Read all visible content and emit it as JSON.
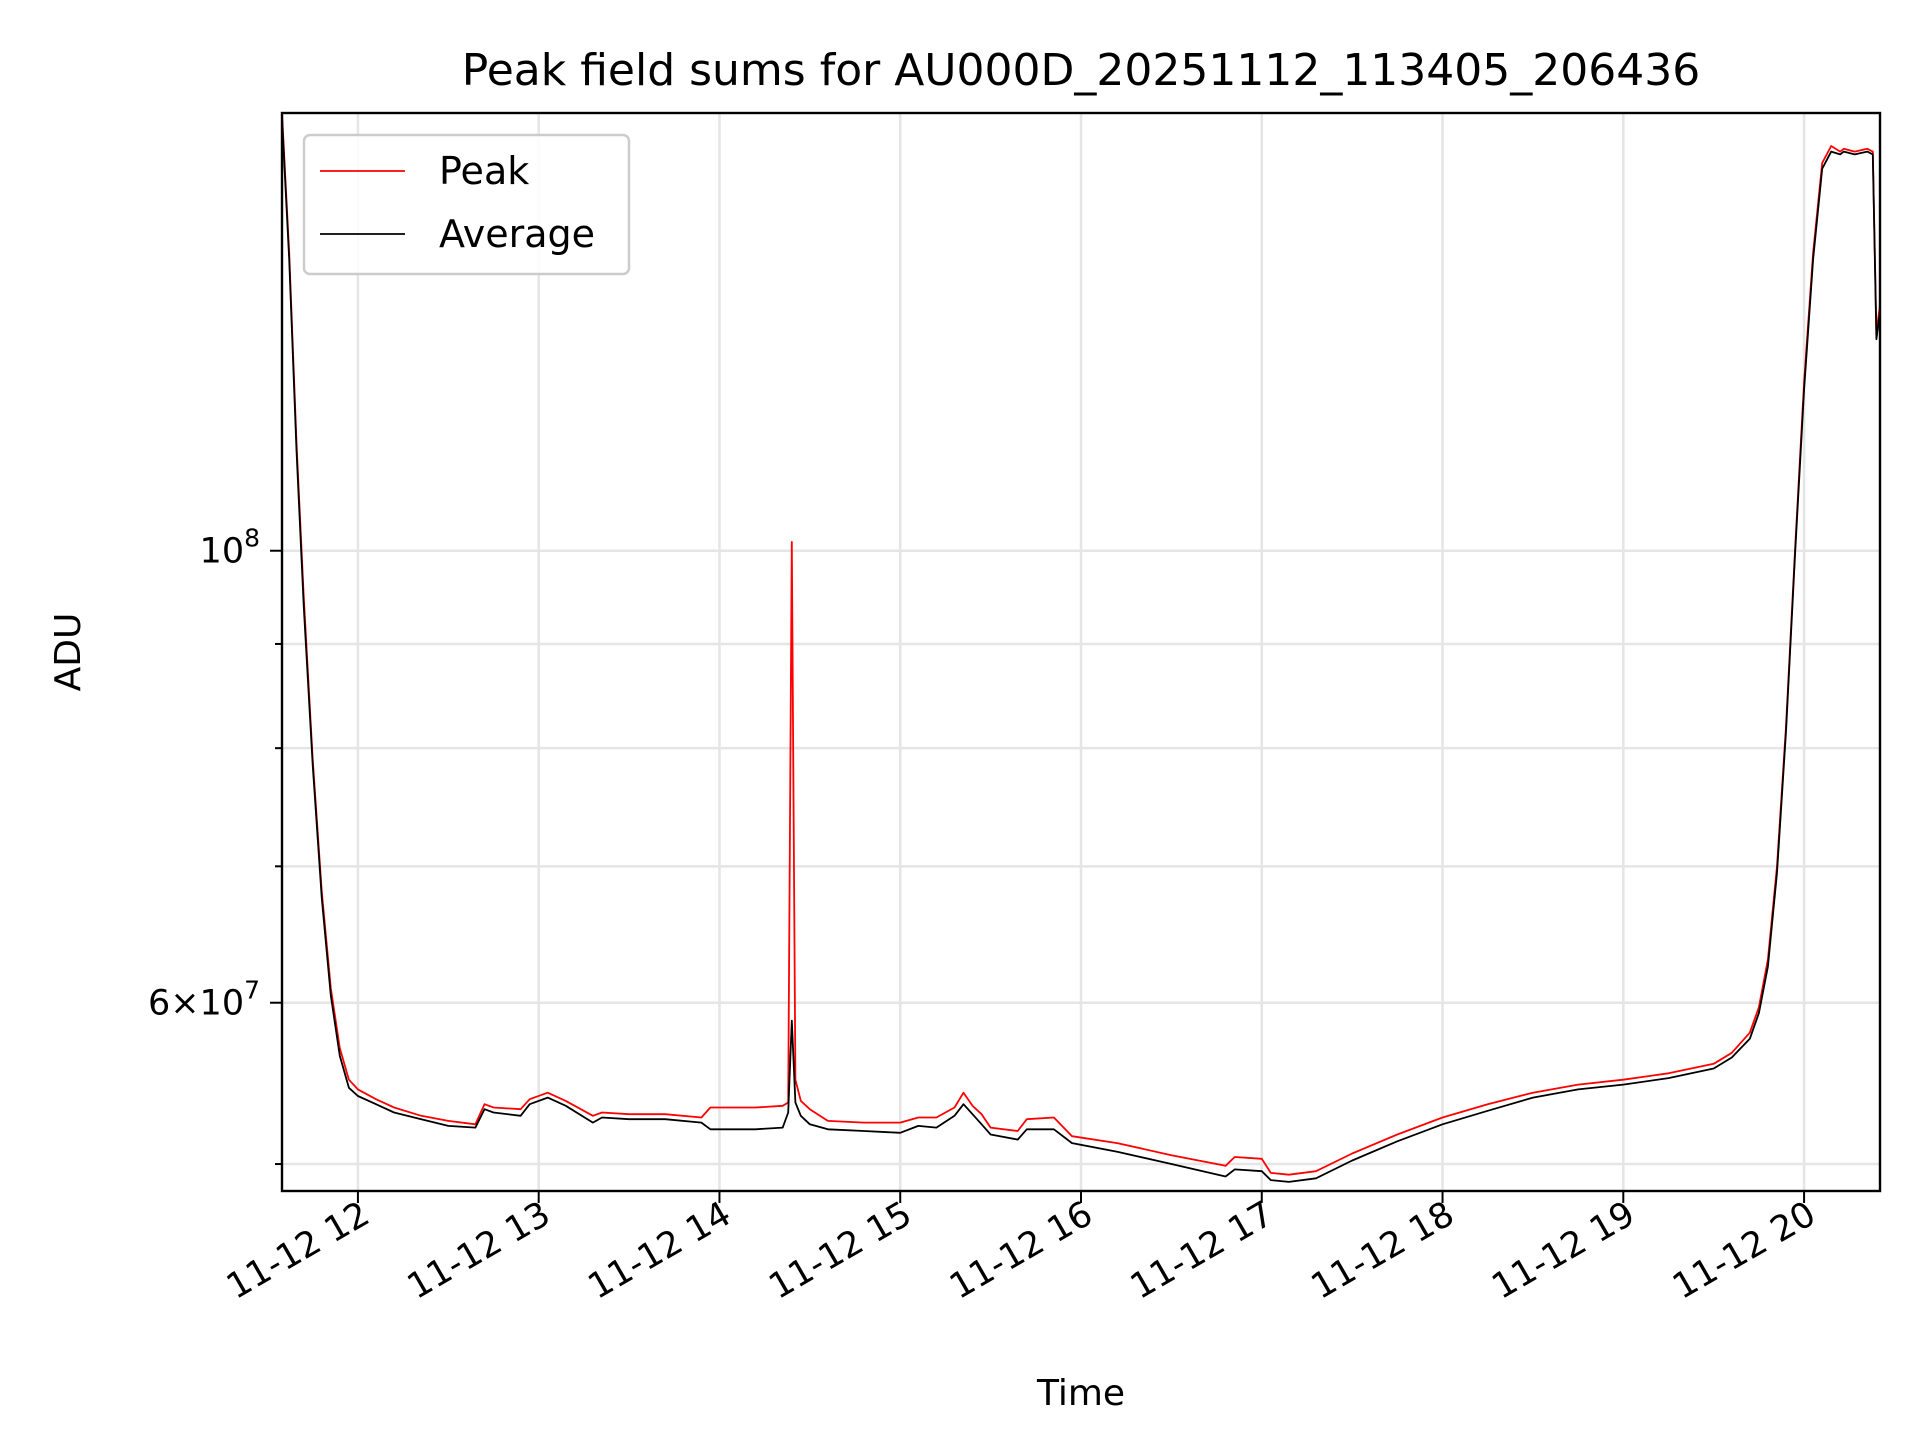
{
  "chart_data": {
    "type": "line",
    "title": "Peak field sums for AU000D_20251112_113405_206436",
    "xlabel": "Time",
    "ylabel": "ADU",
    "yscale": "log",
    "xlim": [
      11.58,
      20.42
    ],
    "ylim": [
      48500000,
      164000000
    ],
    "grid": true,
    "legend_position": "top-left",
    "x_tick_values": [
      12,
      13,
      14,
      15,
      16,
      17,
      18,
      19,
      20
    ],
    "x_tick_labels": [
      "11-12 12",
      "11-12 13",
      "11-12 14",
      "11-12 15",
      "11-12 16",
      "11-12 17",
      "11-12 18",
      "11-12 19",
      "11-12 20"
    ],
    "y_tick_labels": [
      {
        "value": 100000000,
        "base": "10",
        "exp": "8"
      },
      {
        "value": 60000000,
        "base": "6×10",
        "exp": "7"
      }
    ],
    "y_minor_ticks": [
      50000000,
      70000000,
      80000000,
      90000000
    ],
    "series": [
      {
        "name": "Peak",
        "color": "#ff0000",
        "x": [
          11.58,
          11.62,
          11.66,
          11.7,
          11.75,
          11.8,
          11.85,
          11.9,
          11.95,
          12.0,
          12.1,
          12.2,
          12.35,
          12.5,
          12.65,
          12.7,
          12.75,
          12.9,
          12.95,
          13.05,
          13.15,
          13.3,
          13.35,
          13.5,
          13.7,
          13.9,
          13.95,
          14.2,
          14.35,
          14.38,
          14.4,
          14.42,
          14.45,
          14.5,
          14.6,
          14.8,
          15.0,
          15.1,
          15.2,
          15.3,
          15.35,
          15.4,
          15.45,
          15.5,
          15.65,
          15.7,
          15.85,
          15.95,
          16.2,
          16.5,
          16.8,
          16.85,
          17.0,
          17.05,
          17.15,
          17.3,
          17.5,
          17.75,
          18.0,
          18.25,
          18.5,
          18.75,
          19.0,
          19.25,
          19.5,
          19.6,
          19.7,
          19.75,
          19.8,
          19.85,
          19.9,
          19.95,
          20.0,
          20.05,
          20.1,
          20.15,
          20.2,
          20.22,
          20.28,
          20.35,
          20.38,
          20.4,
          20.42
        ],
        "y": [
          164000000,
          140000000,
          113000000,
          95000000,
          79000000,
          68000000,
          61000000,
          57000000,
          55000000,
          54400000,
          53800000,
          53300000,
          52800000,
          52500000,
          52300000,
          53500000,
          53300000,
          53200000,
          53800000,
          54200000,
          53700000,
          52800000,
          53000000,
          52900000,
          52900000,
          52700000,
          53300000,
          53300000,
          53400000,
          53600000,
          101000000,
          55000000,
          53700000,
          53200000,
          52500000,
          52400000,
          52400000,
          52700000,
          52700000,
          53300000,
          54200000,
          53400000,
          52900000,
          52100000,
          51900000,
          52600000,
          52700000,
          51600000,
          51200000,
          50500000,
          49900000,
          50400000,
          50300000,
          49500000,
          49400000,
          49600000,
          50600000,
          51700000,
          52700000,
          53500000,
          54200000,
          54700000,
          55000000,
          55400000,
          56000000,
          56700000,
          58000000,
          59700000,
          63000000,
          70000000,
          82000000,
          100000000,
          121000000,
          140000000,
          155000000,
          158000000,
          157000000,
          157500000,
          157000000,
          157500000,
          157000000,
          128000000,
          132000000
        ]
      },
      {
        "name": "Average",
        "color": "#000000",
        "x": [
          11.58,
          11.62,
          11.66,
          11.7,
          11.75,
          11.8,
          11.85,
          11.9,
          11.95,
          12.0,
          12.1,
          12.2,
          12.35,
          12.5,
          12.65,
          12.7,
          12.75,
          12.9,
          12.95,
          13.05,
          13.15,
          13.3,
          13.35,
          13.5,
          13.7,
          13.9,
          13.95,
          14.2,
          14.35,
          14.38,
          14.4,
          14.42,
          14.45,
          14.5,
          14.6,
          14.8,
          15.0,
          15.1,
          15.2,
          15.3,
          15.35,
          15.4,
          15.45,
          15.5,
          15.65,
          15.7,
          15.85,
          15.95,
          16.2,
          16.5,
          16.8,
          16.85,
          17.0,
          17.05,
          17.15,
          17.3,
          17.5,
          17.75,
          18.0,
          18.25,
          18.5,
          18.75,
          19.0,
          19.25,
          19.5,
          19.6,
          19.7,
          19.75,
          19.8,
          19.85,
          19.9,
          19.95,
          20.0,
          20.05,
          20.1,
          20.15,
          20.2,
          20.22,
          20.28,
          20.35,
          20.38,
          20.4,
          20.42
        ],
        "y": [
          163000000,
          139000000,
          112000000,
          94000000,
          78500000,
          67500000,
          60500000,
          56500000,
          54500000,
          54000000,
          53500000,
          53000000,
          52600000,
          52200000,
          52100000,
          53200000,
          53000000,
          52800000,
          53500000,
          53900000,
          53400000,
          52400000,
          52700000,
          52600000,
          52600000,
          52400000,
          52000000,
          52000000,
          52100000,
          53000000,
          58800000,
          53600000,
          52800000,
          52300000,
          52000000,
          51900000,
          51800000,
          52200000,
          52100000,
          52800000,
          53500000,
          52900000,
          52300000,
          51700000,
          51400000,
          52000000,
          52000000,
          51200000,
          50700000,
          50000000,
          49300000,
          49700000,
          49600000,
          49100000,
          49000000,
          49200000,
          50200000,
          51300000,
          52300000,
          53100000,
          53900000,
          54400000,
          54700000,
          55100000,
          55700000,
          56400000,
          57600000,
          59300000,
          62500000,
          69500000,
          81500000,
          99500000,
          120000000,
          139000000,
          154000000,
          157000000,
          156500000,
          157000000,
          156500000,
          157000000,
          156500000,
          127000000,
          131000000
        ]
      }
    ]
  }
}
